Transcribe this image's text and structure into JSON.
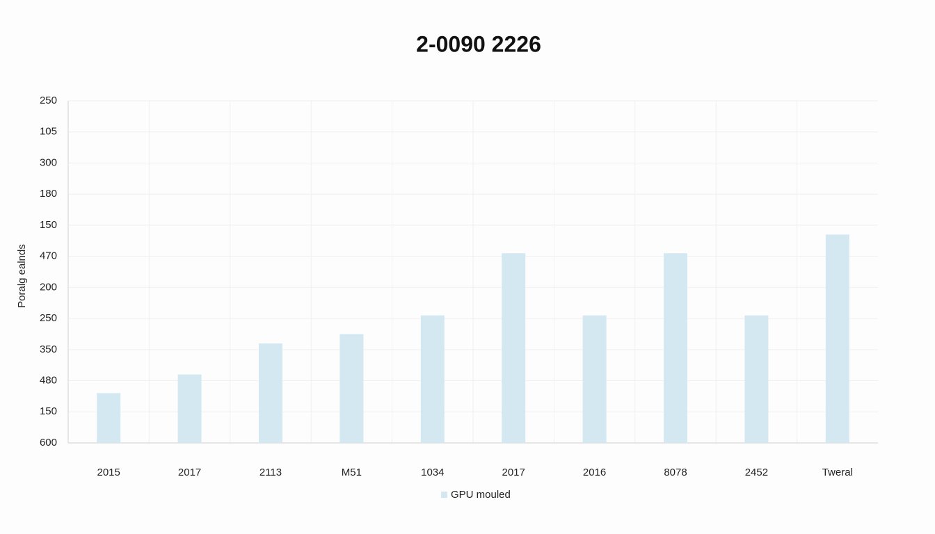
{
  "chart_data": {
    "type": "bar",
    "title": "2-0090 2226",
    "y_label": "Poralg ealnds",
    "categories": [
      "2015",
      "2017",
      "2113",
      "M51",
      "1034",
      "2017",
      "2016",
      "8078",
      "2452",
      "Tweral"
    ],
    "series": [
      {
        "name": "GPU mouled",
        "color": "#d4e8f2",
        "values": [
          1.6,
          2.2,
          3.2,
          3.5,
          4.1,
          6.1,
          4.1,
          6.1,
          4.1,
          6.7
        ]
      }
    ],
    "ylim": [
      0,
      11
    ],
    "yticks": [
      {
        "value": 0,
        "label": "600"
      },
      {
        "value": 1,
        "label": "150"
      },
      {
        "value": 2,
        "label": "480"
      },
      {
        "value": 3,
        "label": "350"
      },
      {
        "value": 4,
        "label": "250"
      },
      {
        "value": 5,
        "label": "200"
      },
      {
        "value": 6,
        "label": "470"
      },
      {
        "value": 7,
        "label": "150"
      },
      {
        "value": 8,
        "label": "180"
      },
      {
        "value": 9,
        "label": "300"
      },
      {
        "value": 10,
        "label": "105"
      },
      {
        "value": 11,
        "label": "250"
      }
    ],
    "grid": true
  }
}
